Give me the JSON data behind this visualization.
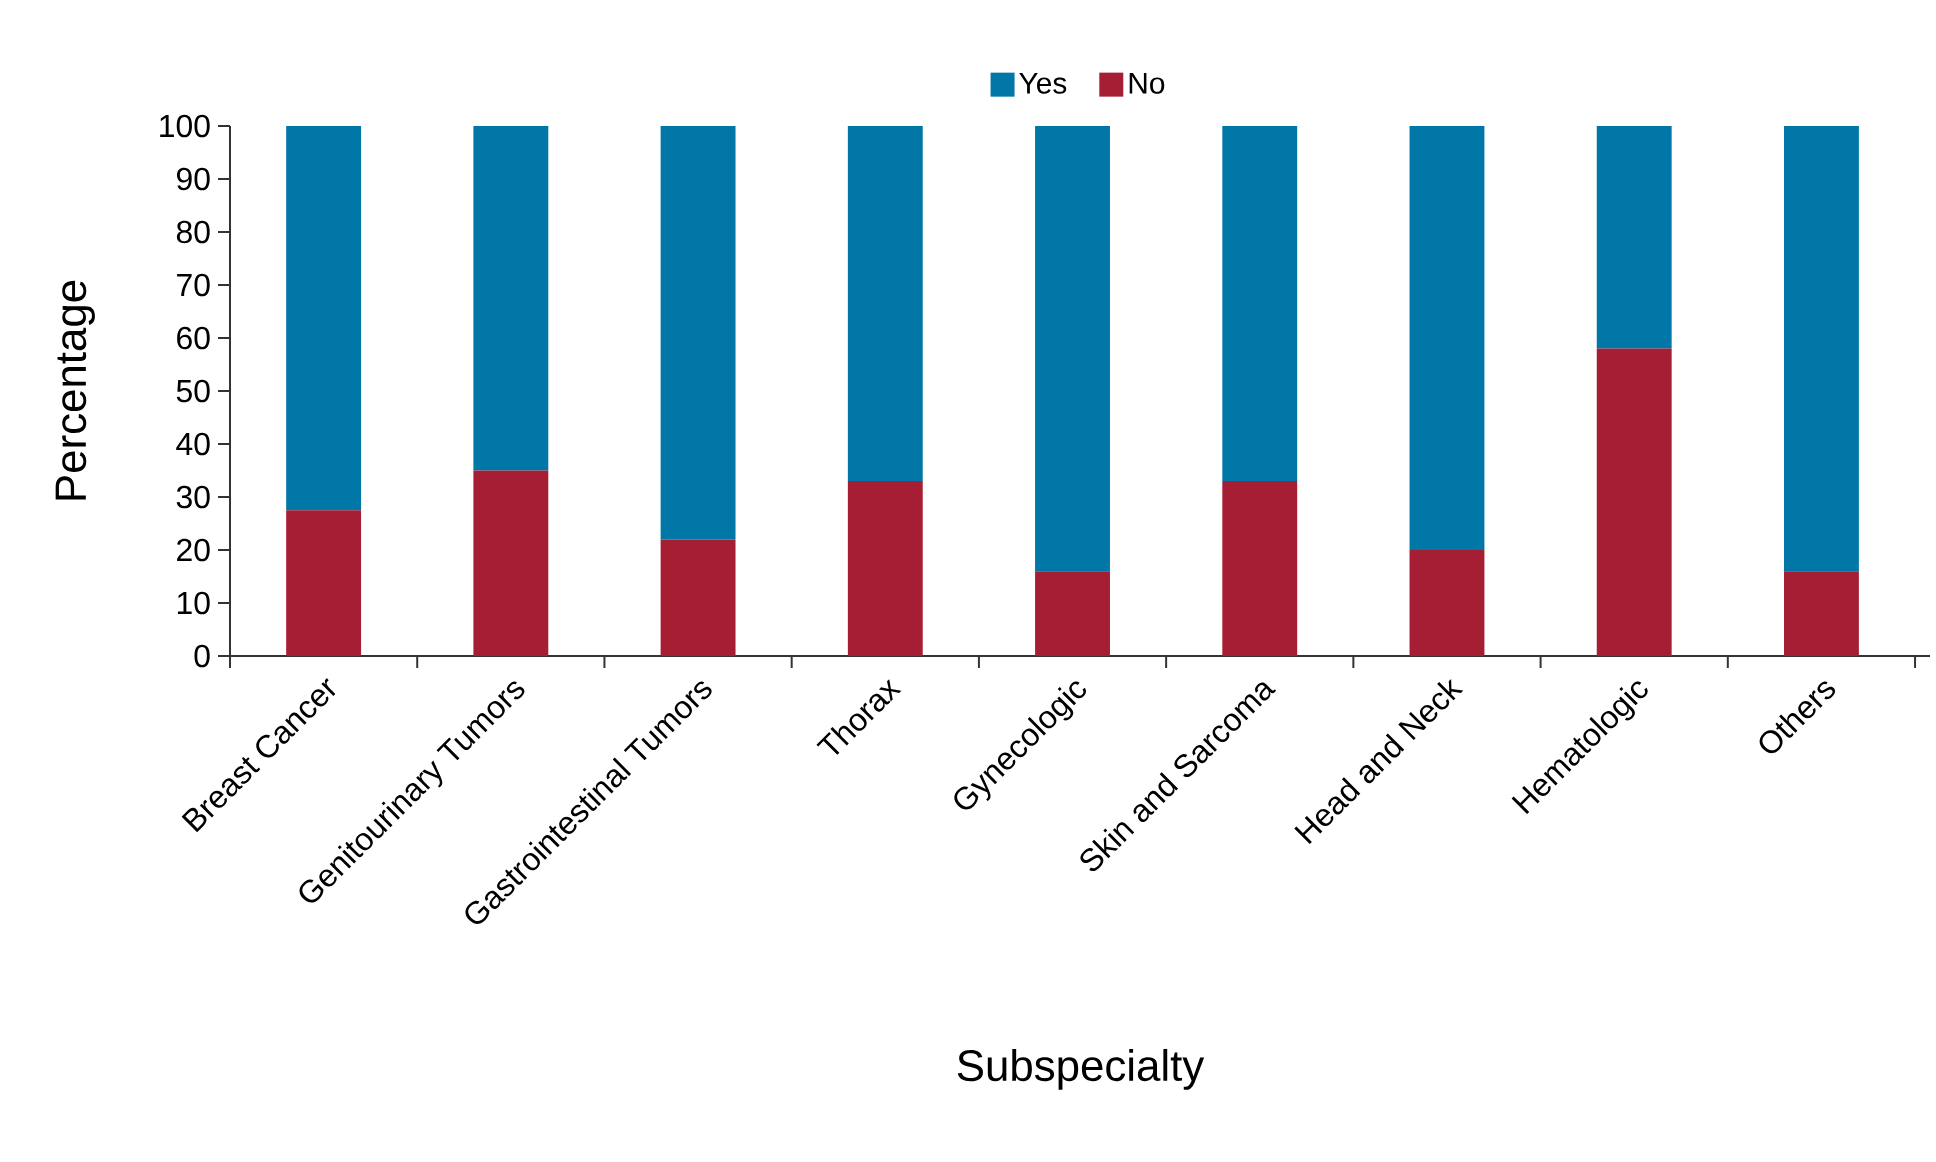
{
  "chart_data": {
    "type": "bar",
    "stacked": true,
    "xlabel": "Subspecialty",
    "ylabel": "Percentage",
    "categories": [
      "Breast Cancer",
      "Genitourinary Tumors",
      "Gastrointestinal Tumors",
      "Thorax",
      "Gynecologic",
      "Skin and Sarcoma",
      "Head and Neck",
      "Hematologic",
      "Others"
    ],
    "series": [
      {
        "name": "No",
        "color": "#a61e34",
        "values": [
          27.5,
          35,
          22,
          33,
          16,
          33,
          20,
          58,
          16
        ]
      },
      {
        "name": "Yes",
        "color": "#0077a6",
        "values": [
          72.5,
          65,
          78,
          67,
          84,
          67,
          80,
          42,
          84
        ]
      }
    ],
    "ylim": [
      0,
      100
    ],
    "yticks": [
      0,
      10,
      20,
      30,
      40,
      50,
      60,
      70,
      80,
      90,
      100
    ],
    "legend": "top"
  }
}
